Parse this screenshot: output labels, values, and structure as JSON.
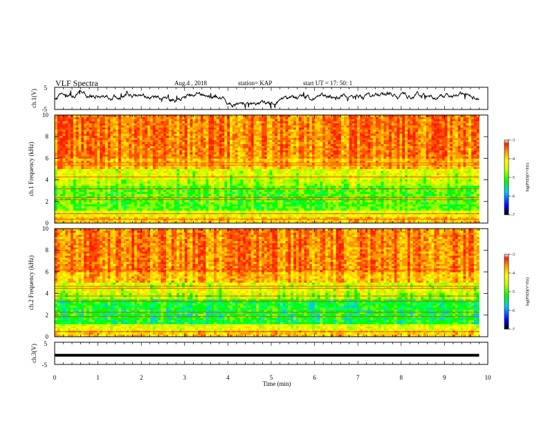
{
  "header": {
    "title": "VLF Spectra",
    "date": "Aug.4 , 2018",
    "station": "station= KAP",
    "start": "start UT = 17: 50: 1"
  },
  "colors": {
    "spectrogram_palette": [
      "#000000",
      "#0000ff",
      "#00c8ff",
      "#00ff00",
      "#c8ff00",
      "#ffff00",
      "#ff9600",
      "#ff3000",
      "#ffffff"
    ],
    "trace": "#000000"
  },
  "chart_data": [
    {
      "type": "line",
      "name": "ch1-waveform",
      "ylabel": "ch.1(V)",
      "ylim": [
        -5,
        5
      ],
      "yticks": [
        "5",
        "-5"
      ],
      "xlim": [
        0,
        10
      ],
      "description_values": "noisy waveform mostly between -3 and +4 V, dip near t=4-5 min"
    },
    {
      "type": "heatmap",
      "name": "ch1-spectrogram",
      "ylabel": "ch.1 Frequency (kHz)",
      "ylim": [
        0,
        10
      ],
      "yticks": [
        "0",
        "2",
        "4",
        "6",
        "8",
        "10"
      ],
      "xlim": [
        0,
        9.8
      ],
      "colorbar": {
        "label": "log(PSD)(V²/Hz)",
        "range": [
          -7,
          -3
        ],
        "ticks": [
          "-3",
          "-4",
          "-5",
          "-6",
          "-7"
        ]
      }
    },
    {
      "type": "heatmap",
      "name": "ch2-spectrogram",
      "ylabel": "ch.2 Frequency (kHz)",
      "ylim": [
        0,
        10
      ],
      "yticks": [
        "0",
        "2",
        "4",
        "6",
        "8",
        "10"
      ],
      "xlim": [
        0,
        9.8
      ],
      "colorbar": {
        "label": "log(PSD)(V²/Hz)",
        "range": [
          -7,
          -3
        ],
        "ticks": [
          "-3",
          "-4",
          "-5",
          "-6",
          "-7"
        ]
      }
    },
    {
      "type": "line",
      "name": "ch3-waveform",
      "ylabel": "ch.3(V)",
      "ylim": [
        -5,
        5
      ],
      "yticks": [
        "5",
        "-5"
      ],
      "xlim": [
        0,
        10
      ],
      "values": [
        -1,
        -1
      ]
    }
  ],
  "xaxis": {
    "label": "Time (min)",
    "ticks": [
      "0",
      "1",
      "2",
      "3",
      "4",
      "5",
      "6",
      "7",
      "8",
      "9",
      "10"
    ]
  }
}
